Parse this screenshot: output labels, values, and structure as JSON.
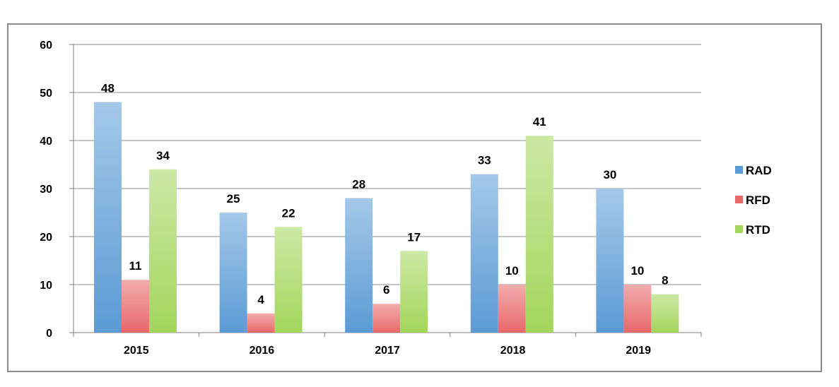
{
  "chart_data": {
    "type": "bar",
    "title": "",
    "xlabel": "",
    "ylabel": "",
    "categories": [
      "2015",
      "2016",
      "2017",
      "2018",
      "2019"
    ],
    "series": [
      {
        "name": "RAD",
        "values": [
          48,
          25,
          28,
          33,
          30
        ],
        "color": "#5b9bd5"
      },
      {
        "name": "RFD",
        "values": [
          11,
          4,
          6,
          10,
          10
        ],
        "color": "#e8686a"
      },
      {
        "name": "RTD",
        "values": [
          34,
          22,
          17,
          41,
          8
        ],
        "color": "#a3d65c"
      }
    ],
    "ylim": [
      0,
      60
    ],
    "yticks": [
      "0",
      "10",
      "20",
      "30",
      "40",
      "50",
      "60"
    ],
    "data_labels": true,
    "grid": true,
    "legend_position": "right"
  }
}
